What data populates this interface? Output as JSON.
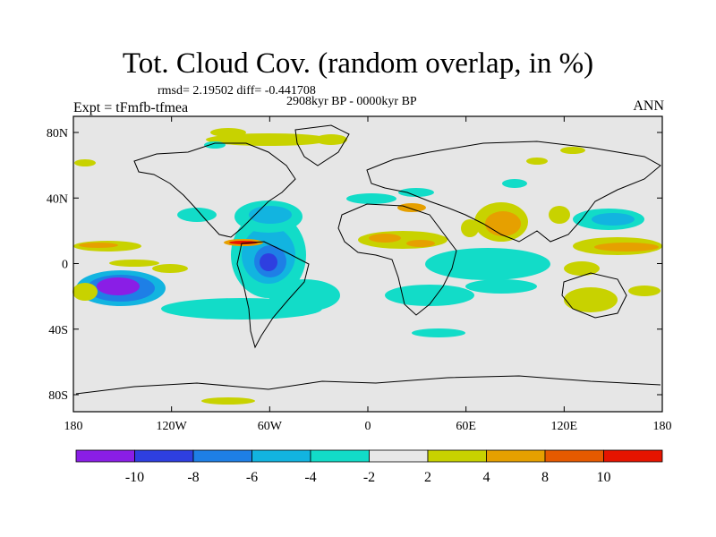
{
  "header": {
    "title": "Tot. Cloud Cov. (random overlap, in %)",
    "stats": "rmsd= 2.19502 diff= -0.441708",
    "period": "2908kyr BP - 0000kyr BP",
    "experiment": "Expt = tFmfb-tfmea",
    "season": "ANN"
  },
  "axes": {
    "x_ticks": [
      "180",
      "120W",
      "60W",
      "0",
      "60E",
      "120E",
      "180"
    ],
    "y_ticks": [
      "80N",
      "40N",
      "0",
      "40S",
      "80S"
    ]
  },
  "colorbar": {
    "labels": [
      "-10",
      "-8",
      "-6",
      "-4",
      "-2",
      "2",
      "4",
      "8",
      "10"
    ],
    "colors": [
      "#8a1ee6",
      "#2e3fe0",
      "#1e7fe6",
      "#12b4e0",
      "#12dcc8",
      "#e8e8e8",
      "#c8d200",
      "#e6a000",
      "#e65a00",
      "#e61400"
    ]
  },
  "map": {
    "background": "#e6e6e6",
    "palette": {
      "purple": "#8a1ee6",
      "blue": "#2e3fe0",
      "mid_blue": "#1e7fe6",
      "light_blue": "#12b4e0",
      "cyan": "#12dcc8",
      "yellow": "#c8d200",
      "orange": "#e6a000",
      "dark_orange": "#e65a00",
      "red": "#e61400"
    }
  }
}
